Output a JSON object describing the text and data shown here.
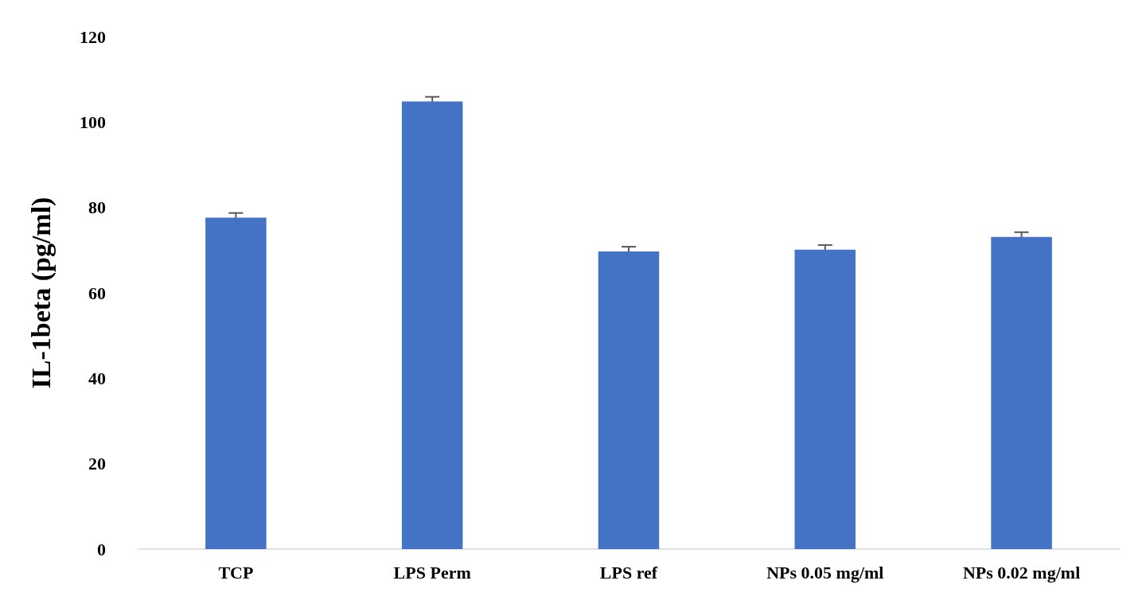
{
  "chart_data": {
    "type": "bar",
    "ylabel": "IL-1beta (pg/ml)",
    "categories": [
      "TCP",
      "LPS Perm",
      "LPS ref",
      "NPs 0.05 mg/ml",
      "NPs 0.02 mg/ml"
    ],
    "values": [
      77.6,
      104.8,
      69.7,
      70.1,
      73.1
    ],
    "errors": [
      1.1,
      1.1,
      1.1,
      1.1,
      1.1
    ],
    "color": "#4472c4",
    "ylim": [
      0,
      120
    ],
    "yticks": [
      0,
      20,
      40,
      60,
      80,
      100,
      120
    ],
    "grid": false
  }
}
